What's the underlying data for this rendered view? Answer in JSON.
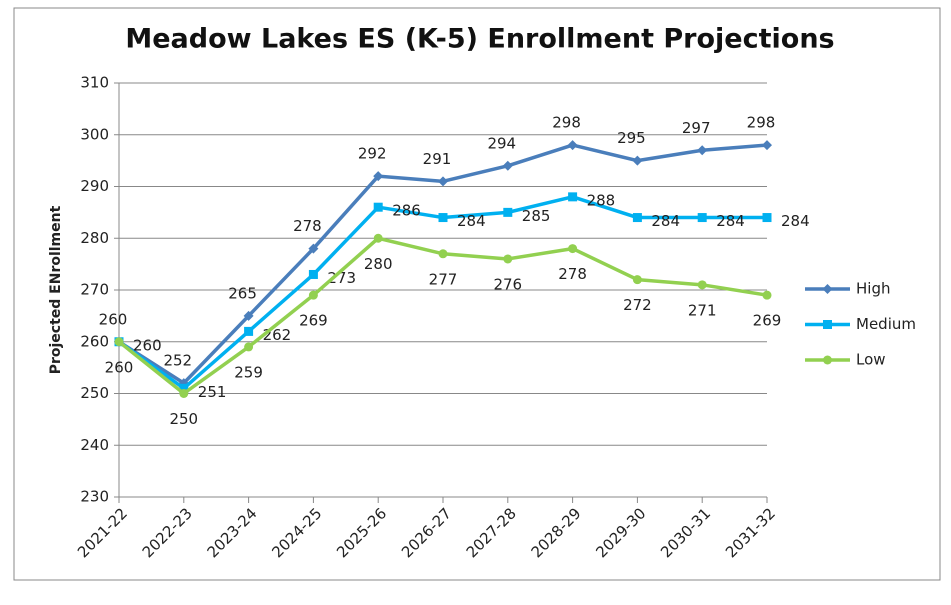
{
  "chart_data": {
    "type": "line",
    "title": "Meadow Lakes ES (K-5) Enrollment Projections",
    "y_label": "Projected ENrollment",
    "categories": [
      "2021-22",
      "2022-23",
      "2023-24",
      "2024-25",
      "2025-26",
      "2026-27",
      "2027-28",
      "2028-29",
      "2029-30",
      "2030-31",
      "2031-32"
    ],
    "series": [
      {
        "name": "High",
        "color": "#4a7ebb",
        "marker": "diamond",
        "values": [
          260,
          252,
          265,
          278,
          292,
          291,
          294,
          298,
          295,
          297,
          298
        ]
      },
      {
        "name": "Medium",
        "color": "#00b0f0",
        "marker": "square",
        "values": [
          260,
          251,
          262,
          273,
          286,
          284,
          285,
          288,
          284,
          284,
          284
        ]
      },
      {
        "name": "Low",
        "color": "#92d050",
        "marker": "circle",
        "values": [
          260,
          250,
          259,
          269,
          280,
          277,
          276,
          278,
          272,
          271,
          269
        ]
      }
    ],
    "ylim": [
      230,
      310
    ],
    "yticks": [
      230,
      240,
      250,
      260,
      270,
      280,
      290,
      300,
      310
    ],
    "grid": true,
    "legend": "right"
  }
}
